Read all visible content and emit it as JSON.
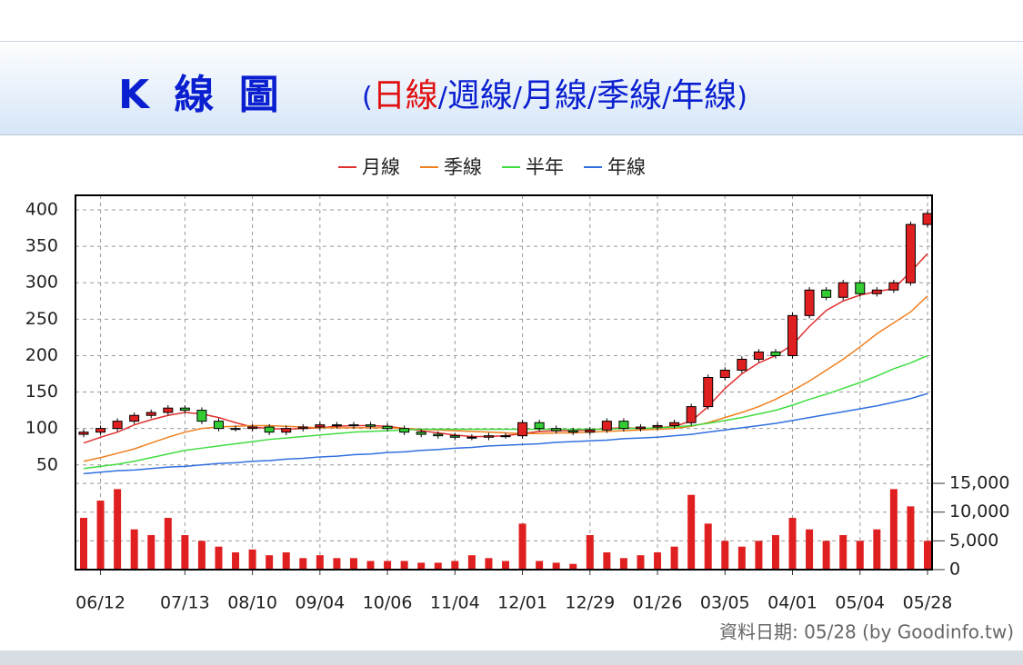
{
  "header": {
    "title": "K 線 圖",
    "open": "(",
    "close": ")",
    "separator": "/",
    "tabs": [
      "日線",
      "週線",
      "月線",
      "季線",
      "年線"
    ],
    "active_tab": 0
  },
  "chart_data": {
    "type": "candlestick",
    "note": "資料日期: 05/28  (by Goodinfo.tw)",
    "categories": [
      null,
      "06/12",
      null,
      null,
      null,
      null,
      "07/13",
      null,
      null,
      null,
      "08/10",
      null,
      null,
      null,
      "09/04",
      null,
      null,
      null,
      "10/06",
      null,
      null,
      null,
      "11/04",
      null,
      null,
      null,
      "12/01",
      null,
      null,
      null,
      "12/29",
      null,
      null,
      null,
      "01/26",
      null,
      null,
      null,
      "03/05",
      null,
      null,
      null,
      "04/01",
      null,
      null,
      null,
      "05/04",
      null,
      null,
      null,
      "05/28"
    ],
    "open": [
      92,
      95,
      100,
      110,
      118,
      122,
      128,
      125,
      110,
      100,
      100,
      102,
      95,
      100,
      102,
      105,
      104,
      105,
      103,
      100,
      95,
      92,
      90,
      88,
      88,
      90,
      90,
      108,
      100,
      97,
      95,
      98,
      110,
      100,
      102,
      104,
      108,
      130,
      170,
      180,
      195,
      205,
      200,
      255,
      290,
      280,
      300,
      285,
      290,
      300,
      380
    ],
    "high": [
      99,
      104,
      114,
      122,
      126,
      132,
      132,
      129,
      114,
      104,
      106,
      106,
      104,
      106,
      109,
      109,
      109,
      109,
      107,
      104,
      99,
      96,
      94,
      92,
      94,
      94,
      112,
      112,
      104,
      101,
      102,
      114,
      114,
      106,
      108,
      112,
      134,
      174,
      184,
      199,
      209,
      209,
      259,
      294,
      294,
      304,
      304,
      294,
      304,
      384,
      399
    ],
    "low": [
      88,
      91,
      96,
      106,
      114,
      118,
      121,
      106,
      96,
      96,
      96,
      91,
      91,
      96,
      98,
      100,
      100,
      99,
      96,
      91,
      88,
      86,
      84,
      84,
      84,
      86,
      86,
      96,
      93,
      91,
      91,
      94,
      96,
      96,
      98,
      100,
      104,
      126,
      166,
      176,
      191,
      196,
      196,
      251,
      276,
      276,
      281,
      281,
      286,
      296,
      376
    ],
    "close": [
      95,
      100,
      110,
      118,
      122,
      128,
      125,
      110,
      100,
      100,
      102,
      95,
      100,
      102,
      105,
      104,
      105,
      103,
      100,
      95,
      92,
      90,
      88,
      88,
      90,
      90,
      108,
      100,
      97,
      95,
      98,
      110,
      100,
      102,
      104,
      108,
      130,
      170,
      180,
      195,
      205,
      200,
      255,
      290,
      280,
      300,
      285,
      290,
      300,
      380,
      395
    ],
    "up_color": "#e02020",
    "down_color": "#33cc33",
    "series": [
      {
        "name": "月線",
        "color": "#e03030",
        "values": [
          80,
          88,
          95,
          105,
          112,
          118,
          122,
          120,
          115,
          108,
          102,
          100,
          99,
          100,
          101,
          103,
          104,
          104,
          103,
          100,
          97,
          94,
          91,
          89,
          89,
          90,
          93,
          96,
          97,
          97,
          98,
          100,
          101,
          100,
          101,
          103,
          110,
          130,
          155,
          175,
          190,
          200,
          215,
          240,
          262,
          275,
          283,
          288,
          292,
          315,
          340
        ]
      },
      {
        "name": "季線",
        "color": "#f08020",
        "values": [
          55,
          60,
          66,
          72,
          80,
          88,
          95,
          100,
          102,
          103,
          104,
          104,
          103,
          102,
          101,
          101,
          101,
          101,
          101,
          100,
          99,
          98,
          97,
          96,
          95,
          94,
          93,
          93,
          94,
          94,
          95,
          96,
          97,
          98,
          99,
          100,
          103,
          108,
          115,
          122,
          130,
          140,
          152,
          165,
          180,
          195,
          212,
          230,
          245,
          260,
          282
        ]
      },
      {
        "name": "半年",
        "color": "#40dd40",
        "values": [
          45,
          48,
          51,
          55,
          60,
          65,
          70,
          73,
          76,
          79,
          82,
          85,
          87,
          89,
          91,
          93,
          95,
          96,
          97,
          98,
          99,
          99,
          99,
          99,
          99,
          99,
          99,
          99,
          99,
          99,
          99,
          99,
          100,
          100,
          101,
          102,
          104,
          107,
          111,
          115,
          120,
          125,
          132,
          140,
          147,
          155,
          163,
          172,
          182,
          190,
          200
        ]
      },
      {
        "name": "年線",
        "color": "#3070e0",
        "values": [
          38,
          40,
          42,
          43,
          45,
          47,
          48,
          50,
          52,
          53,
          55,
          56,
          58,
          59,
          61,
          62,
          64,
          65,
          67,
          68,
          70,
          71,
          73,
          74,
          76,
          77,
          78,
          79,
          81,
          82,
          83,
          84,
          86,
          87,
          88,
          90,
          92,
          95,
          98,
          101,
          104,
          107,
          111,
          115,
          119,
          123,
          127,
          131,
          136,
          141,
          148
        ]
      }
    ],
    "volume": {
      "color": "#e02020",
      "axis": "y2",
      "values": [
        9000,
        12000,
        14000,
        7000,
        6000,
        9000,
        6000,
        5000,
        4000,
        3000,
        3500,
        2500,
        3000,
        2000,
        2500,
        2000,
        2000,
        1500,
        1500,
        1500,
        1200,
        1200,
        1500,
        2500,
        2000,
        1500,
        8000,
        1500,
        1200,
        1000,
        6000,
        3000,
        2000,
        2500,
        3000,
        4000,
        13000,
        8000,
        5000,
        4000,
        5000,
        6000,
        9000,
        7000,
        5000,
        6000,
        5000,
        7000,
        14000,
        11000,
        5000
      ]
    },
    "ylim": [
      31,
      420
    ],
    "yticks": [
      50,
      100,
      150,
      200,
      250,
      300,
      350,
      400
    ],
    "y2lim": [
      0,
      15800
    ],
    "y2ticks": [
      0,
      {
        "value": 5000,
        "label": "5,000"
      },
      {
        "value": 10000,
        "label": "10,000"
      },
      {
        "value": 15000,
        "label": "15,000"
      }
    ],
    "grid": true
  }
}
